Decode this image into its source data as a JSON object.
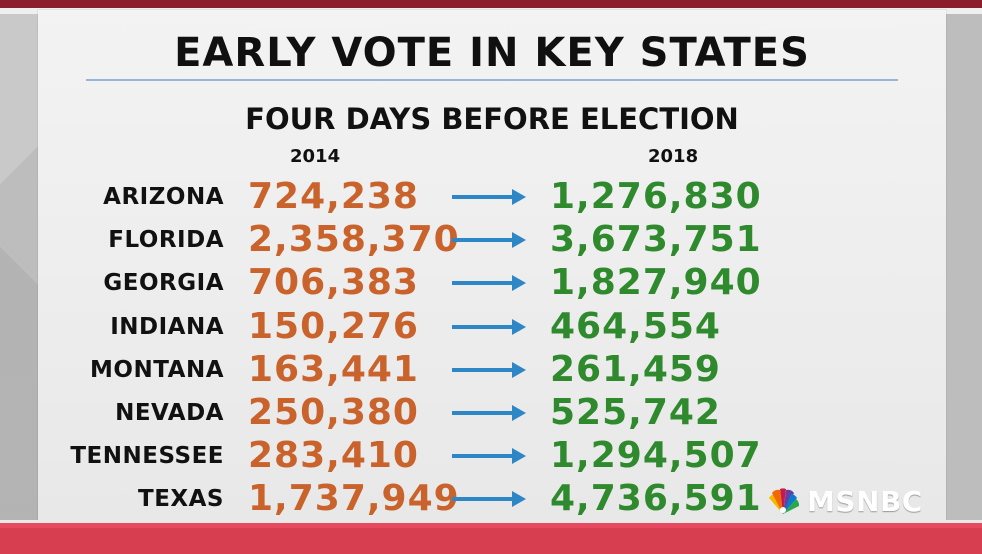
{
  "title": "EARLY VOTE IN KEY STATES",
  "subtitle": "FOUR DAYS BEFORE ELECTION",
  "years": [
    "2014",
    "2018"
  ],
  "rows": [
    {
      "state": "ARIZONA",
      "y2014": "724,238",
      "y2018": "1,276,830"
    },
    {
      "state": "FLORIDA",
      "y2014": "2,358,370",
      "y2018": "3,673,751"
    },
    {
      "state": "GEORGIA",
      "y2014": "706,383",
      "y2018": "1,827,940"
    },
    {
      "state": "INDIANA",
      "y2014": "150,276",
      "y2018": "464,554"
    },
    {
      "state": "MONTANA",
      "y2014": "163,441",
      "y2018": "261,459"
    },
    {
      "state": "NEVADA",
      "y2014": "250,380",
      "y2018": "525,742"
    },
    {
      "state": "TENNESSEE",
      "y2014": "283,410",
      "y2018": "1,294,507"
    },
    {
      "state": "TEXAS",
      "y2014": "1,737,949",
      "y2018": "4,736,591"
    }
  ],
  "logo": {
    "text": "MSNBC",
    "icon": "peacock-logo"
  },
  "colors": {
    "value_2014": "#c9632b",
    "value_2018": "#2f8a2e",
    "arrow": "#2d86c5",
    "accent": "#d73e50"
  }
}
